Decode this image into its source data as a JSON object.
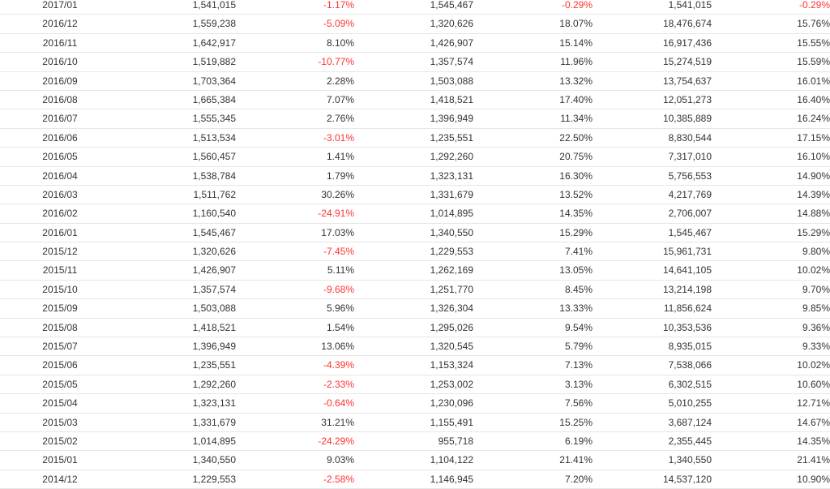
{
  "table": {
    "rows": [
      [
        "2017/01",
        "1,541,015",
        "-1.17%",
        "1,545,467",
        "-0.29%",
        "1,541,015",
        "-0.29%"
      ],
      [
        "2016/12",
        "1,559,238",
        "-5.09%",
        "1,320,626",
        "18.07%",
        "18,476,674",
        "15.76%"
      ],
      [
        "2016/11",
        "1,642,917",
        "8.10%",
        "1,426,907",
        "15.14%",
        "16,917,436",
        "15.55%"
      ],
      [
        "2016/10",
        "1,519,882",
        "-10.77%",
        "1,357,574",
        "11.96%",
        "15,274,519",
        "15.59%"
      ],
      [
        "2016/09",
        "1,703,364",
        "2.28%",
        "1,503,088",
        "13.32%",
        "13,754,637",
        "16.01%"
      ],
      [
        "2016/08",
        "1,665,384",
        "7.07%",
        "1,418,521",
        "17.40%",
        "12,051,273",
        "16.40%"
      ],
      [
        "2016/07",
        "1,555,345",
        "2.76%",
        "1,396,949",
        "11.34%",
        "10,385,889",
        "16.24%"
      ],
      [
        "2016/06",
        "1,513,534",
        "-3.01%",
        "1,235,551",
        "22.50%",
        "8,830,544",
        "17.15%"
      ],
      [
        "2016/05",
        "1,560,457",
        "1.41%",
        "1,292,260",
        "20.75%",
        "7,317,010",
        "16.10%"
      ],
      [
        "2016/04",
        "1,538,784",
        "1.79%",
        "1,323,131",
        "16.30%",
        "5,756,553",
        "14.90%"
      ],
      [
        "2016/03",
        "1,511,762",
        "30.26%",
        "1,331,679",
        "13.52%",
        "4,217,769",
        "14.39%"
      ],
      [
        "2016/02",
        "1,160,540",
        "-24.91%",
        "1,014,895",
        "14.35%",
        "2,706,007",
        "14.88%"
      ],
      [
        "2016/01",
        "1,545,467",
        "17.03%",
        "1,340,550",
        "15.29%",
        "1,545,467",
        "15.29%"
      ],
      [
        "2015/12",
        "1,320,626",
        "-7.45%",
        "1,229,553",
        "7.41%",
        "15,961,731",
        "9.80%"
      ],
      [
        "2015/11",
        "1,426,907",
        "5.11%",
        "1,262,169",
        "13.05%",
        "14,641,105",
        "10.02%"
      ],
      [
        "2015/10",
        "1,357,574",
        "-9.68%",
        "1,251,770",
        "8.45%",
        "13,214,198",
        "9.70%"
      ],
      [
        "2015/09",
        "1,503,088",
        "5.96%",
        "1,326,304",
        "13.33%",
        "11,856,624",
        "9.85%"
      ],
      [
        "2015/08",
        "1,418,521",
        "1.54%",
        "1,295,026",
        "9.54%",
        "10,353,536",
        "9.36%"
      ],
      [
        "2015/07",
        "1,396,949",
        "13.06%",
        "1,320,545",
        "5.79%",
        "8,935,015",
        "9.33%"
      ],
      [
        "2015/06",
        "1,235,551",
        "-4.39%",
        "1,153,324",
        "7.13%",
        "7,538,066",
        "10.02%"
      ],
      [
        "2015/05",
        "1,292,260",
        "-2.33%",
        "1,253,002",
        "3.13%",
        "6,302,515",
        "10.60%"
      ],
      [
        "2015/04",
        "1,323,131",
        "-0.64%",
        "1,230,096",
        "7.56%",
        "5,010,255",
        "12.71%"
      ],
      [
        "2015/03",
        "1,331,679",
        "31.21%",
        "1,155,491",
        "15.25%",
        "3,687,124",
        "14.67%"
      ],
      [
        "2015/02",
        "1,014,895",
        "-24.29%",
        "955,718",
        "6.19%",
        "2,355,445",
        "14.35%"
      ],
      [
        "2015/01",
        "1,340,550",
        "9.03%",
        "1,104,122",
        "21.41%",
        "1,340,550",
        "21.41%"
      ],
      [
        "2014/12",
        "1,229,553",
        "-2.58%",
        "1,146,945",
        "7.20%",
        "14,537,120",
        "10.90%"
      ]
    ]
  },
  "colors": {
    "negative": "#ff3333",
    "text": "#333333",
    "row_border": "#e6e6e6"
  }
}
